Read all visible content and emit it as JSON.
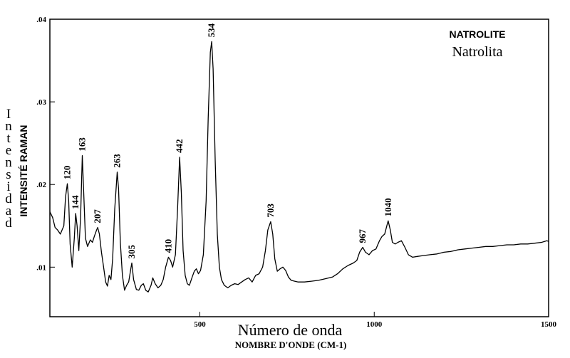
{
  "chart_data": {
    "type": "line",
    "title": "NATROLITE",
    "subtitle": "Natrolita",
    "xlabel": "Número de onda",
    "xlabel_secondary": "NOMBRE D'ONDE (CM-1)",
    "ylabel": "INTENSITÉ RAMAN",
    "ylabel_secondary": "Intensidad",
    "xlim": [
      70,
      1500
    ],
    "ylim": [
      0.004,
      0.04
    ],
    "x_ticks": [
      {
        "value": 500,
        "label": "500"
      },
      {
        "value": 1000,
        "label": "1000"
      },
      {
        "value": 1500,
        "label": "1500"
      }
    ],
    "y_ticks": [
      {
        "value": 0.01,
        "label": ".01"
      },
      {
        "value": 0.02,
        "label": ".02"
      },
      {
        "value": 0.03,
        "label": ".03"
      },
      {
        "value": 0.04,
        "label": ".04"
      }
    ],
    "grid": false,
    "peaks": [
      {
        "x": 120,
        "label": "120",
        "y": 0.0201
      },
      {
        "x": 144,
        "label": "144",
        "y": 0.0165
      },
      {
        "x": 163,
        "label": "163",
        "y": 0.0235
      },
      {
        "x": 207,
        "label": "207",
        "y": 0.0148
      },
      {
        "x": 263,
        "label": "263",
        "y": 0.0215
      },
      {
        "x": 305,
        "label": "305",
        "y": 0.0105
      },
      {
        "x": 410,
        "label": "410",
        "y": 0.0112
      },
      {
        "x": 442,
        "label": "442",
        "y": 0.0233
      },
      {
        "x": 534,
        "label": "534",
        "y": 0.0373
      },
      {
        "x": 703,
        "label": "703",
        "y": 0.0155
      },
      {
        "x": 967,
        "label": "967",
        "y": 0.0124
      },
      {
        "x": 1040,
        "label": "1040",
        "y": 0.0156
      }
    ],
    "series": [
      {
        "points": [
          [
            70,
            0.0167
          ],
          [
            78,
            0.016
          ],
          [
            85,
            0.0148
          ],
          [
            92,
            0.0145
          ],
          [
            100,
            0.014
          ],
          [
            110,
            0.015
          ],
          [
            115,
            0.0185
          ],
          [
            120,
            0.0201
          ],
          [
            124,
            0.018
          ],
          [
            128,
            0.0128
          ],
          [
            134,
            0.01
          ],
          [
            140,
            0.0135
          ],
          [
            144,
            0.0165
          ],
          [
            148,
            0.015
          ],
          [
            153,
            0.012
          ],
          [
            158,
            0.016
          ],
          [
            163,
            0.0235
          ],
          [
            167,
            0.019
          ],
          [
            172,
            0.0135
          ],
          [
            178,
            0.0125
          ],
          [
            186,
            0.0133
          ],
          [
            192,
            0.013
          ],
          [
            198,
            0.0138
          ],
          [
            204,
            0.0145
          ],
          [
            207,
            0.0148
          ],
          [
            212,
            0.014
          ],
          [
            218,
            0.0118
          ],
          [
            224,
            0.01
          ],
          [
            230,
            0.0082
          ],
          [
            235,
            0.0077
          ],
          [
            240,
            0.009
          ],
          [
            245,
            0.0085
          ],
          [
            250,
            0.011
          ],
          [
            256,
            0.017
          ],
          [
            263,
            0.0215
          ],
          [
            267,
            0.0195
          ],
          [
            272,
            0.013
          ],
          [
            278,
            0.009
          ],
          [
            284,
            0.0072
          ],
          [
            290,
            0.0078
          ],
          [
            296,
            0.0082
          ],
          [
            302,
            0.0098
          ],
          [
            305,
            0.0105
          ],
          [
            310,
            0.0085
          ],
          [
            318,
            0.0073
          ],
          [
            325,
            0.0072
          ],
          [
            332,
            0.0078
          ],
          [
            338,
            0.008
          ],
          [
            345,
            0.0072
          ],
          [
            352,
            0.007
          ],
          [
            360,
            0.0078
          ],
          [
            365,
            0.0087
          ],
          [
            372,
            0.008
          ],
          [
            380,
            0.0075
          ],
          [
            388,
            0.0078
          ],
          [
            395,
            0.0085
          ],
          [
            402,
            0.01
          ],
          [
            410,
            0.0112
          ],
          [
            416,
            0.0108
          ],
          [
            422,
            0.01
          ],
          [
            430,
            0.0115
          ],
          [
            436,
            0.017
          ],
          [
            442,
            0.0233
          ],
          [
            447,
            0.019
          ],
          [
            452,
            0.012
          ],
          [
            458,
            0.009
          ],
          [
            464,
            0.008
          ],
          [
            470,
            0.0078
          ],
          [
            478,
            0.0088
          ],
          [
            484,
            0.0095
          ],
          [
            490,
            0.0098
          ],
          [
            496,
            0.0092
          ],
          [
            502,
            0.0096
          ],
          [
            510,
            0.0115
          ],
          [
            518,
            0.018
          ],
          [
            524,
            0.028
          ],
          [
            530,
            0.036
          ],
          [
            534,
            0.0373
          ],
          [
            538,
            0.034
          ],
          [
            544,
            0.023
          ],
          [
            550,
            0.014
          ],
          [
            556,
            0.01
          ],
          [
            562,
            0.0085
          ],
          [
            570,
            0.0078
          ],
          [
            580,
            0.0075
          ],
          [
            590,
            0.0078
          ],
          [
            600,
            0.008
          ],
          [
            610,
            0.0079
          ],
          [
            620,
            0.0082
          ],
          [
            630,
            0.0085
          ],
          [
            640,
            0.0087
          ],
          [
            650,
            0.0082
          ],
          [
            660,
            0.009
          ],
          [
            670,
            0.0092
          ],
          [
            680,
            0.01
          ],
          [
            688,
            0.012
          ],
          [
            695,
            0.0145
          ],
          [
            703,
            0.0155
          ],
          [
            709,
            0.014
          ],
          [
            715,
            0.011
          ],
          [
            722,
            0.0095
          ],
          [
            730,
            0.0098
          ],
          [
            738,
            0.01
          ],
          [
            746,
            0.0096
          ],
          [
            754,
            0.0088
          ],
          [
            762,
            0.0084
          ],
          [
            772,
            0.0083
          ],
          [
            782,
            0.0082
          ],
          [
            800,
            0.0082
          ],
          [
            820,
            0.0083
          ],
          [
            840,
            0.0084
          ],
          [
            860,
            0.0086
          ],
          [
            880,
            0.0088
          ],
          [
            895,
            0.0092
          ],
          [
            910,
            0.0098
          ],
          [
            925,
            0.0102
          ],
          [
            940,
            0.0105
          ],
          [
            950,
            0.0108
          ],
          [
            958,
            0.0118
          ],
          [
            967,
            0.0124
          ],
          [
            975,
            0.0118
          ],
          [
            985,
            0.0115
          ],
          [
            995,
            0.012
          ],
          [
            1005,
            0.0122
          ],
          [
            1015,
            0.0132
          ],
          [
            1022,
            0.0137
          ],
          [
            1030,
            0.014
          ],
          [
            1036,
            0.015
          ],
          [
            1040,
            0.0156
          ],
          [
            1046,
            0.0145
          ],
          [
            1052,
            0.013
          ],
          [
            1060,
            0.0128
          ],
          [
            1068,
            0.013
          ],
          [
            1078,
            0.0132
          ],
          [
            1088,
            0.0124
          ],
          [
            1098,
            0.0115
          ],
          [
            1110,
            0.0112
          ],
          [
            1125,
            0.0113
          ],
          [
            1140,
            0.0114
          ],
          [
            1160,
            0.0115
          ],
          [
            1180,
            0.0116
          ],
          [
            1200,
            0.0118
          ],
          [
            1220,
            0.0119
          ],
          [
            1240,
            0.0121
          ],
          [
            1260,
            0.0122
          ],
          [
            1280,
            0.0123
          ],
          [
            1300,
            0.0124
          ],
          [
            1320,
            0.0125
          ],
          [
            1340,
            0.0125
          ],
          [
            1360,
            0.0126
          ],
          [
            1380,
            0.0127
          ],
          [
            1400,
            0.0127
          ],
          [
            1420,
            0.0128
          ],
          [
            1440,
            0.0128
          ],
          [
            1460,
            0.0129
          ],
          [
            1480,
            0.013
          ],
          [
            1495,
            0.0132
          ],
          [
            1500,
            0.0131
          ]
        ]
      }
    ]
  }
}
